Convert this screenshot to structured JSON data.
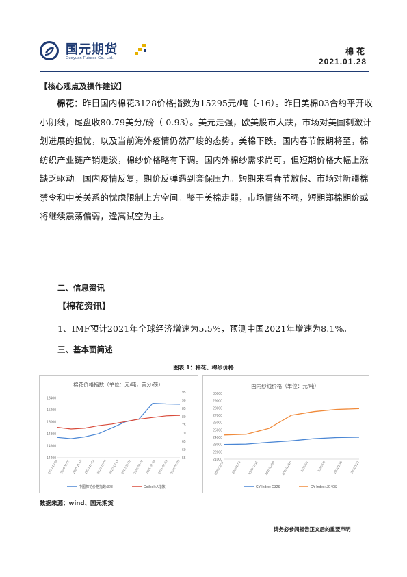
{
  "header": {
    "brand_cn": "国元期货",
    "brand_en": "Guoyuan Futures Co., Ltd.",
    "category": "棉花",
    "date": "2021.01.28",
    "colors": {
      "brand_blue": "#1f3b73",
      "accent_gold": "#e6b100"
    }
  },
  "section1": {
    "heading": "【核心观点及操作建议】"
  },
  "core": {
    "lead": "棉花：",
    "text": "昨日国内棉花3128价格指数为15295元/吨（-16）。昨日美棉03合约平开收小阴线，尾盘收80.79美分/磅（-0.93）。美元走强，欧美股市大跌，市场对美国刺激计划进展的担忧，以及当前海外疫情仍然严峻的态势，美棉下跌。国内春节假期将至，棉纺织产业链产销走淡，棉纱价格略有下调。国内外棉纱需求尚可，但短期价格大幅上涨缺乏驱动。国内疫情反复，期价反弹遇到套保压力。短期来看春节放假、市场对新疆棉禁令和中美关系的忧虑限制上方空间。鉴于美棉走弱，市场情绪不强，短期郑棉期价或将继续震荡偏弱，逢高试空为主。"
  },
  "section2": {
    "heading": "二、信息资讯",
    "sub": "【棉花资讯】"
  },
  "news": {
    "item1": "1、IMF预计2021年全球经济增速为5.5%，预测中国2021年增速为8.1%。"
  },
  "section3": {
    "heading": "三、基本面简述"
  },
  "figure": {
    "title": "图表 1：棉花、棉纱价格"
  },
  "chart_data": [
    {
      "type": "line",
      "title": "棉花价格指数（单位：元/吨，美分/磅）",
      "x": [
        "2020/10/28",
        "2020/11/07",
        "2020/11/17",
        "2020/11/27",
        "2020/12/07",
        "2020/12/17",
        "2020/12/27",
        "2021/01/06",
        "2021/01/16",
        "2021/01/28"
      ],
      "x_ticks": [
        "2020-10-30",
        "2020-11-07",
        "2020-11-16",
        "2020-11-25",
        "2020-12-04",
        "2020-12-13",
        "2020-12-22",
        "2021-01-01",
        "2021-01-10",
        "2021-01-19",
        "2021-01-28"
      ],
      "y_left_ticks": [
        "14400",
        "14600",
        "14800",
        "15000",
        "15200",
        "15400"
      ],
      "y_left_lim": [
        14400,
        15500
      ],
      "y_right_ticks": [
        "55",
        "60",
        "65",
        "70",
        "75",
        "80",
        "85",
        "90",
        "95"
      ],
      "y_right_lim": [
        55,
        95
      ],
      "series": [
        {
          "name": "中国棉花价格指数:328",
          "axis": "left",
          "color": "#4a86d4",
          "values": [
            14740,
            14720,
            14750,
            14800,
            14900,
            15000,
            15050,
            15310,
            15300,
            15295
          ]
        },
        {
          "name": "Cotlook:A指数",
          "axis": "right",
          "color": "#d84a3a",
          "values": [
            73.5,
            72.5,
            73.0,
            74.5,
            75.5,
            77.0,
            78.5,
            79.5,
            80.5,
            80.8
          ]
        }
      ],
      "legend_position": "bottom"
    },
    {
      "type": "line",
      "title": "国内纱线价格（单位：元/吨）",
      "x": [
        "2020/11/27",
        "2020/12/07",
        "2020/12/17",
        "2020/12/27",
        "2021/01/06",
        "2021/01/16",
        "2021/01/28"
      ],
      "x_ticks": [
        "2020/11/27",
        "2020/12/4",
        "2020/12/11",
        "2020/12/18",
        "2020/12/25",
        "2021/1/1",
        "2021/1/8",
        "2021/1/15",
        "2021/1/22"
      ],
      "y_ticks": [
        "21000",
        "22000",
        "23000",
        "24000",
        "25000",
        "26000",
        "27000",
        "28000",
        "29000",
        "30000"
      ],
      "ylim": [
        21000,
        30000
      ],
      "series": [
        {
          "name": "CY Index: C32S",
          "color": "#4a86d4",
          "values": [
            23000,
            23050,
            23300,
            23500,
            23800,
            23950,
            24000
          ]
        },
        {
          "name": "CY Index: JC40S",
          "color": "#f08a3a",
          "values": [
            24300,
            24400,
            25200,
            27000,
            27500,
            27800,
            27900
          ]
        }
      ],
      "legend_position": "bottom"
    }
  ],
  "source": "数据来源：wind、国元期货",
  "footer": "请务必参阅报告正文后的重要声明"
}
